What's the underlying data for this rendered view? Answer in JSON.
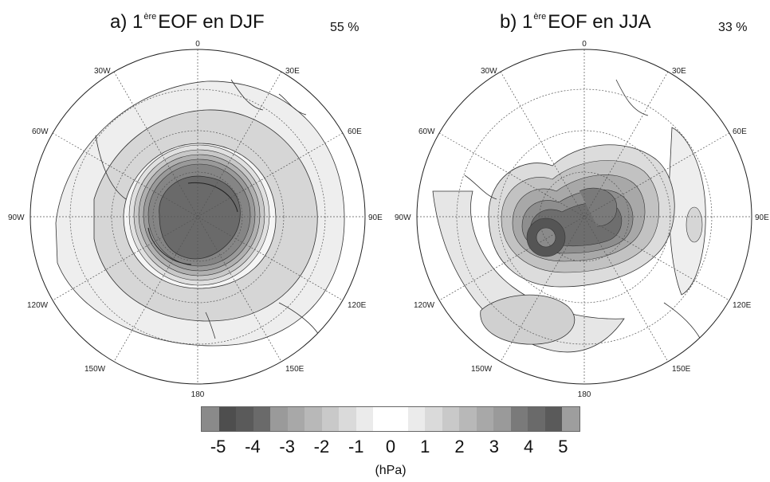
{
  "panels": [
    {
      "title_prefix": "a) 1",
      "title_sup": "ère",
      "title_suffix": "EOF en DJF",
      "percent": "55 %",
      "labels": {
        "top": "0",
        "bottom": "180",
        "left": "90W",
        "right": "90E",
        "lon30W": "30W",
        "lon30E": "30E",
        "lon60W": "60W",
        "lon60E": "60E",
        "lon120W": "120W",
        "lon120E": "120E",
        "lon150W": "150W",
        "lon150E": "150E"
      }
    },
    {
      "title_prefix": "b) 1",
      "title_sup": "ère",
      "title_suffix": "EOF en JJA",
      "percent": "33 %",
      "labels": {
        "top": "0",
        "bottom": "180",
        "left": "90W",
        "right": "90E",
        "lon30W": "30W",
        "lon30E": "30E",
        "lon60W": "60W",
        "lon60E": "60E",
        "lon120W": "120W",
        "lon120E": "120E",
        "lon150W": "150W",
        "lon150E": "150E"
      }
    }
  ],
  "colorbar": {
    "colors": [
      "#8a8a8a",
      "#4e4e4e",
      "#5a5a5a",
      "#6a6a6a",
      "#9a9a9a",
      "#a8a8a8",
      "#b8b8b8",
      "#c9c9c9",
      "#dadada",
      "#ebebeb",
      "#ffffff",
      "#ffffff",
      "#ebebeb",
      "#dadada",
      "#c9c9c9",
      "#b8b8b8",
      "#a8a8a8",
      "#9a9a9a",
      "#7a7a7a",
      "#6a6a6a",
      "#5a5a5a",
      "#9e9e9e"
    ],
    "ticks": [
      "-5",
      "-4",
      "-3",
      "-2",
      "-1",
      "0",
      "1",
      "2",
      "3",
      "4",
      "5"
    ],
    "unit": "(hPa)"
  }
}
